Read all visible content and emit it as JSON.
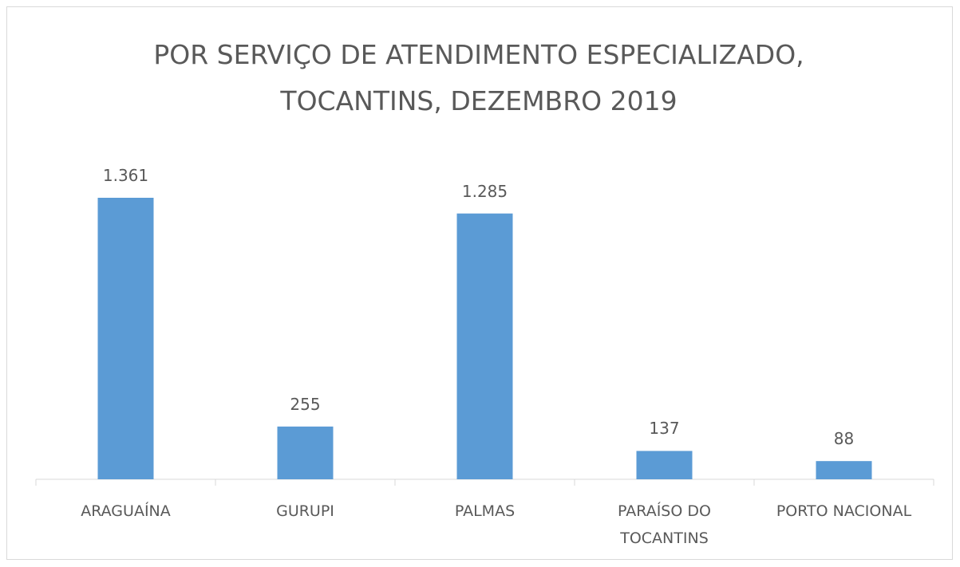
{
  "chart_data": {
    "type": "bar",
    "title": "POR SERVIÇO DE ATENDIMENTO ESPECIALIZADO, TOCANTINS, DEZEMBRO 2019",
    "categories": [
      "ARAGUAÍNA",
      "GURUPI",
      "PALMAS",
      "PARAÍSO DO TOCANTINS",
      "PORTO NACIONAL"
    ],
    "values": [
      1361,
      255,
      1285,
      137,
      88
    ],
    "value_labels": [
      "1.361",
      "255",
      "1.285",
      "137",
      "88"
    ],
    "color": "#5b9bd5"
  }
}
